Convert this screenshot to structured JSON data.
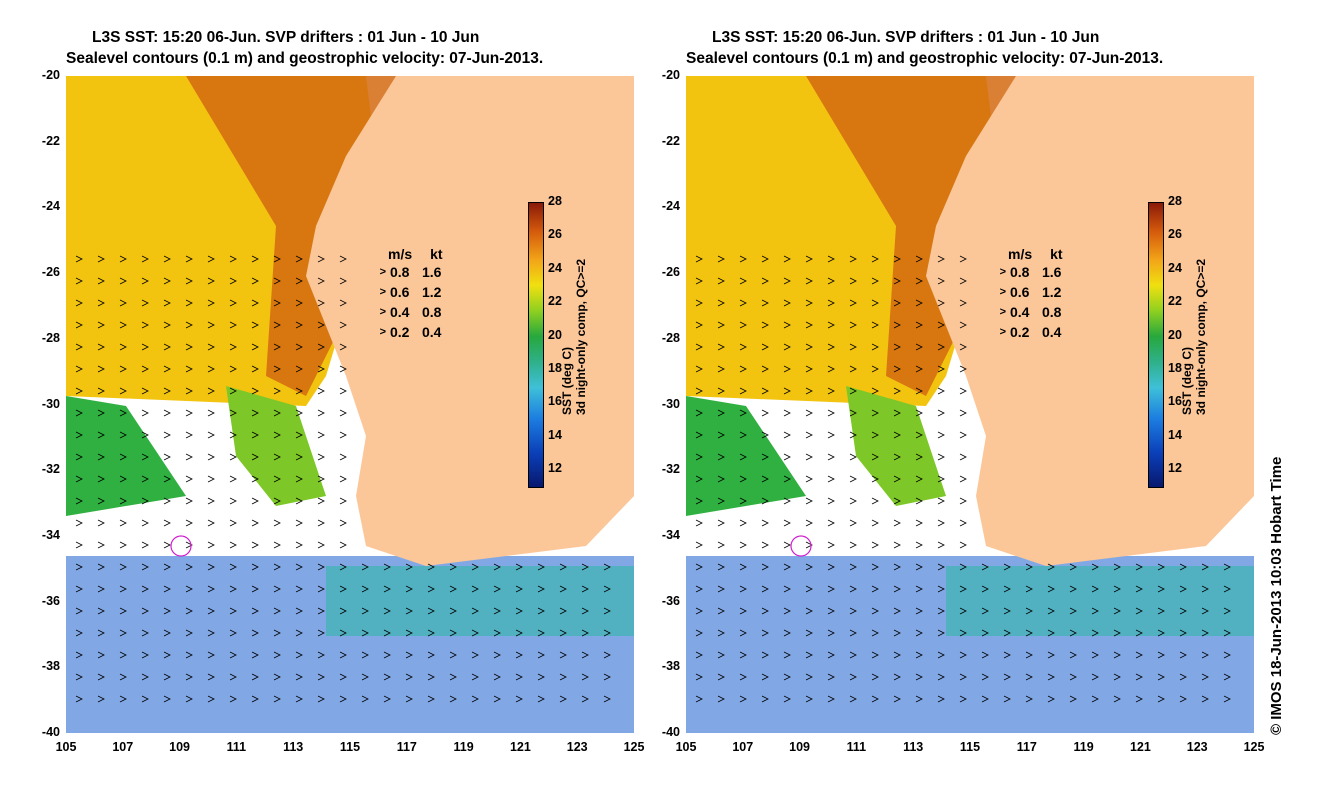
{
  "title_line1": "L3S SST: 15:20 06-Jun. SVP drifters : 01 Jun - 10 Jun",
  "title_line2": "Sealevel contours (0.1 m) and geostrophic velocity: 07-Jun-2013.",
  "axes": {
    "y_ticks": [
      "-20",
      "-22",
      "-24",
      "-26",
      "-28",
      "-30",
      "-32",
      "-34",
      "-36",
      "-38",
      "-40"
    ],
    "x_ticks": [
      "105",
      "107",
      "109",
      "111",
      "113",
      "115",
      "117",
      "119",
      "121",
      "123",
      "125"
    ],
    "lat_range": [
      -40,
      -20
    ],
    "lon_range": [
      105,
      125
    ]
  },
  "velocity_legend": {
    "header_ms": "m/s",
    "header_kt": "kt",
    "rows": [
      {
        "ms": "0.8",
        "kt": "1.6"
      },
      {
        "ms": "0.6",
        "kt": "1.2"
      },
      {
        "ms": "0.4",
        "kt": "0.8"
      },
      {
        "ms": "0.2",
        "kt": "0.4"
      }
    ]
  },
  "colorbar": {
    "ticks": [
      "28",
      "26",
      "24",
      "22",
      "20",
      "18",
      "16",
      "14",
      "12"
    ],
    "label_line1": "SST (deg C)",
    "label_line2": "3d night-only comp, QC>=2",
    "range": [
      11,
      28
    ]
  },
  "copyright": "© IMOS 18-Jun-2013 10:03 Hobart Time",
  "colors": {
    "land": "#fbc698",
    "sst_warm": "#d46a10",
    "sst_mid": "#f2c410",
    "sst_cool": "#2fb040",
    "sst_cold": "#1a60d0",
    "drifter": "#d020d0"
  }
}
